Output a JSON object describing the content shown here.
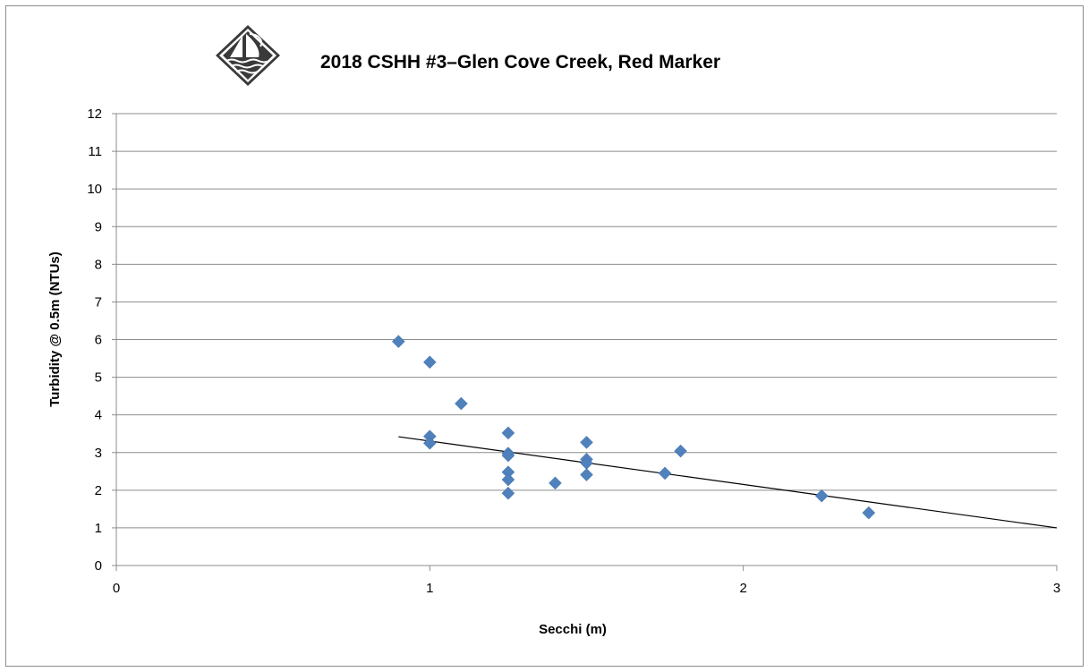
{
  "chart_data": {
    "type": "scatter",
    "title": "2018 CSHH #3–Glen Cove Creek, Red Marker",
    "xlabel": "Secchi (m)",
    "ylabel": "Turbidity @ 0.5m  (NTUs)",
    "xlim": [
      0,
      3
    ],
    "ylim": [
      0,
      12
    ],
    "x_ticks": [
      "0",
      "1",
      "2",
      "3"
    ],
    "y_ticks": [
      "0",
      "1",
      "2",
      "3",
      "4",
      "5",
      "6",
      "7",
      "8",
      "9",
      "10",
      "11",
      "12"
    ],
    "grid": "horizontal",
    "marker": "diamond",
    "marker_color": "#4f81bd",
    "trendline_color": "#000000",
    "points": [
      {
        "x": 0.9,
        "y": 5.95
      },
      {
        "x": 1.0,
        "y": 5.4
      },
      {
        "x": 1.1,
        "y": 4.3
      },
      {
        "x": 1.0,
        "y": 3.43
      },
      {
        "x": 1.0,
        "y": 3.25
      },
      {
        "x": 1.25,
        "y": 3.52
      },
      {
        "x": 1.25,
        "y": 2.98
      },
      {
        "x": 1.25,
        "y": 2.92
      },
      {
        "x": 1.25,
        "y": 2.48
      },
      {
        "x": 1.25,
        "y": 2.28
      },
      {
        "x": 1.25,
        "y": 1.92
      },
      {
        "x": 1.4,
        "y": 2.19
      },
      {
        "x": 1.5,
        "y": 3.27
      },
      {
        "x": 1.5,
        "y": 2.82
      },
      {
        "x": 1.5,
        "y": 2.72
      },
      {
        "x": 1.5,
        "y": 2.41
      },
      {
        "x": 1.75,
        "y": 2.45
      },
      {
        "x": 1.8,
        "y": 3.04
      },
      {
        "x": 2.25,
        "y": 1.85
      },
      {
        "x": 2.4,
        "y": 1.4
      }
    ],
    "trendline": {
      "x": [
        0.9,
        3.0
      ],
      "y": [
        3.42,
        1.0
      ]
    }
  }
}
